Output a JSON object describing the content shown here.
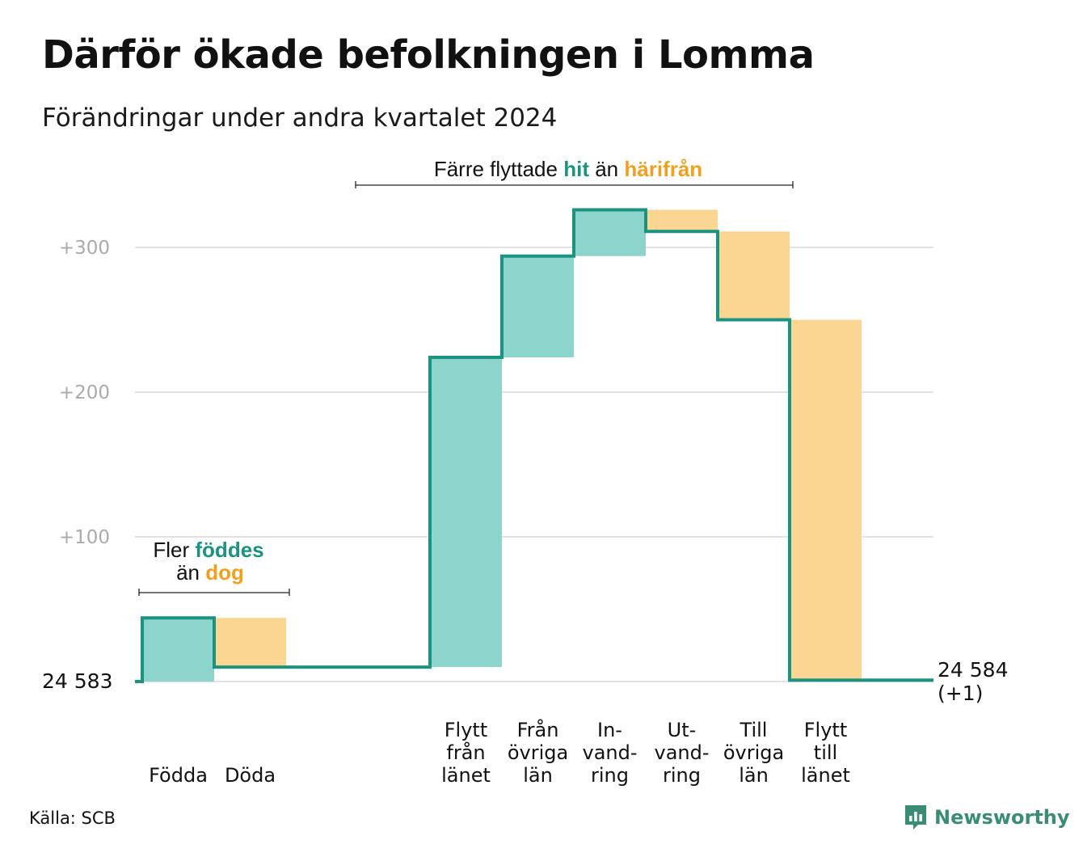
{
  "title": "Därför ökade befolkningen i Lomma",
  "subtitle": "Förändringar under andra kvartalet 2024",
  "source": "Källa: SCB",
  "brand": "Newsworthy",
  "colors": {
    "increase": "#8dd5cc",
    "decrease": "#fbd692",
    "line": "#1a9480",
    "accent_teal": "#1a9480",
    "accent_orange": "#f0a020",
    "grid": "#e3e3e3"
  },
  "annotations": {
    "births": {
      "line1_prefix": "Fler",
      "line1_highlight": "föddes",
      "line2_prefix": "än",
      "line2_highlight": "dog"
    },
    "moves": {
      "prefix": "Färre flyttade",
      "highlight1": "hit",
      "middle": "än",
      "highlight2": "härifrån"
    }
  },
  "chart_data": {
    "type": "waterfall",
    "start_label": "24  583",
    "end_label_1": "24 584",
    "end_label_2": "(+1)",
    "yticks": [
      {
        "value": 100,
        "label": "+100"
      },
      {
        "value": 200,
        "label": "+200"
      },
      {
        "value": 300,
        "label": "+300"
      }
    ],
    "ylim": [
      0,
      330
    ],
    "steps": [
      {
        "name": "Födda",
        "label_lines": [
          "Födda"
        ],
        "value": 44,
        "kind": "increase",
        "group": 0
      },
      {
        "name": "Döda",
        "label_lines": [
          "Döda"
        ],
        "value": -34,
        "kind": "decrease",
        "group": 0
      },
      {
        "name": "Flytt från länet",
        "label_lines": [
          "Flytt",
          "från",
          "länet"
        ],
        "value": 214,
        "kind": "increase",
        "group": 1
      },
      {
        "name": "Från övriga län",
        "label_lines": [
          "Från",
          "övriga",
          "län"
        ],
        "value": 70,
        "kind": "increase",
        "group": 1
      },
      {
        "name": "Invandring",
        "label_lines": [
          "In-",
          "vand-",
          "ring"
        ],
        "value": 32,
        "kind": "increase",
        "group": 1
      },
      {
        "name": "Utvandring",
        "label_lines": [
          "Ut-",
          "vand-",
          "ring"
        ],
        "value": -15,
        "kind": "decrease",
        "group": 1
      },
      {
        "name": "Till övriga län",
        "label_lines": [
          "Till",
          "övriga",
          "län"
        ],
        "value": -61,
        "kind": "decrease",
        "group": 1
      },
      {
        "name": "Flytt till länet",
        "label_lines": [
          "Flytt",
          "till",
          "länet"
        ],
        "value": -249,
        "kind": "decrease",
        "group": 1
      }
    ],
    "total_change": 1
  }
}
